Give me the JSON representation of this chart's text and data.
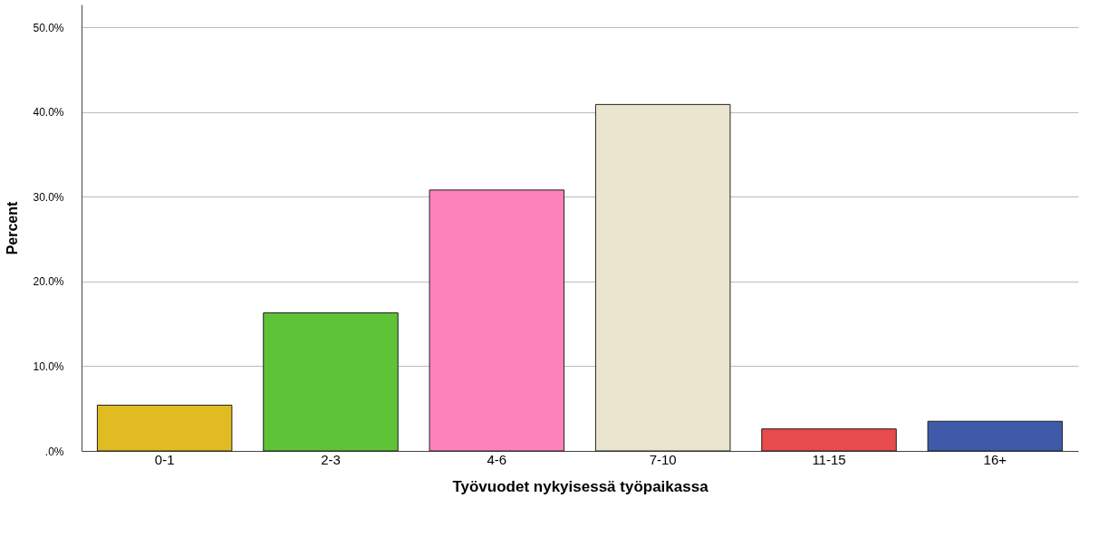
{
  "chart_data": {
    "type": "bar",
    "xlabel": "Työvuodet nykyisessä työpaikassa",
    "ylabel": "Percent",
    "categories": [
      "0-1",
      "2-3",
      "4-6",
      "7-10",
      "11-15",
      "16+"
    ],
    "values": [
      5.4,
      16.3,
      30.8,
      40.9,
      2.6,
      3.5
    ],
    "colors": [
      "#e1bb22",
      "#5fc338",
      "#fd83ba",
      "#ebe4cf",
      "#e84b4b",
      "#3e5aa9"
    ],
    "ylim": [
      0,
      52.7
    ],
    "yticks": [
      {
        "value": 0,
        "label": ".0%"
      },
      {
        "value": 10,
        "label": "10.0%"
      },
      {
        "value": 20,
        "label": "20.0%"
      },
      {
        "value": 30,
        "label": "30.0%"
      },
      {
        "value": 40,
        "label": "40.0%"
      },
      {
        "value": 50,
        "label": "50.0%"
      }
    ],
    "grid": "y"
  }
}
